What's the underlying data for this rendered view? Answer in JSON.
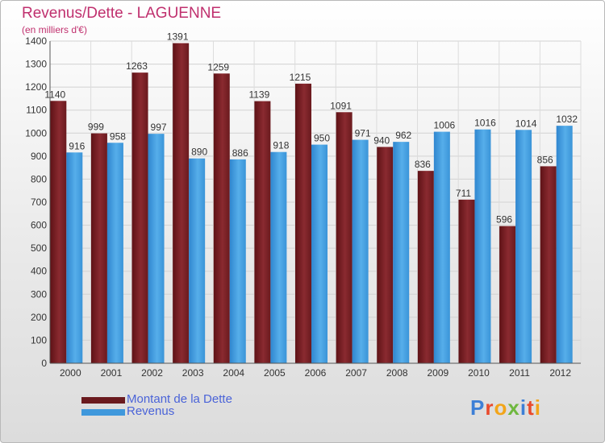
{
  "title": "Revenus/Dette - LAGUENNE",
  "subtitle": "(en milliers d'€)",
  "logo": {
    "letters": [
      "P",
      "r",
      "o",
      "x",
      "i",
      "t",
      "i"
    ],
    "colors": [
      "#3d7fd6",
      "#e94a2c",
      "#f2a51a",
      "#6fb83f",
      "#3d7fd6",
      "#e94a2c",
      "#f2a51a"
    ]
  },
  "chart_data": {
    "type": "bar",
    "title": "Revenus/Dette - LAGUENNE",
    "ylim": [
      0,
      1400
    ],
    "yticks": [
      0,
      100,
      200,
      300,
      400,
      500,
      600,
      700,
      800,
      900,
      1000,
      1100,
      1200,
      1300,
      1400
    ],
    "grid": true,
    "legend_position": "bottom-left",
    "categories": [
      "2000",
      "2001",
      "2002",
      "2003",
      "2004",
      "2005",
      "2006",
      "2007",
      "2008",
      "2009",
      "2010",
      "2011",
      "2012"
    ],
    "series": [
      {
        "name": "Montant de la Dette",
        "color": "#7a1f24",
        "values": [
          1140,
          999,
          1263,
          1391,
          1259,
          1139,
          1215,
          1091,
          940,
          836,
          711,
          596,
          856
        ]
      },
      {
        "name": "Revenus",
        "color": "#3f98dc",
        "values": [
          916,
          958,
          997,
          890,
          886,
          918,
          950,
          971,
          962,
          1006,
          1016,
          1014,
          1032
        ]
      }
    ]
  }
}
